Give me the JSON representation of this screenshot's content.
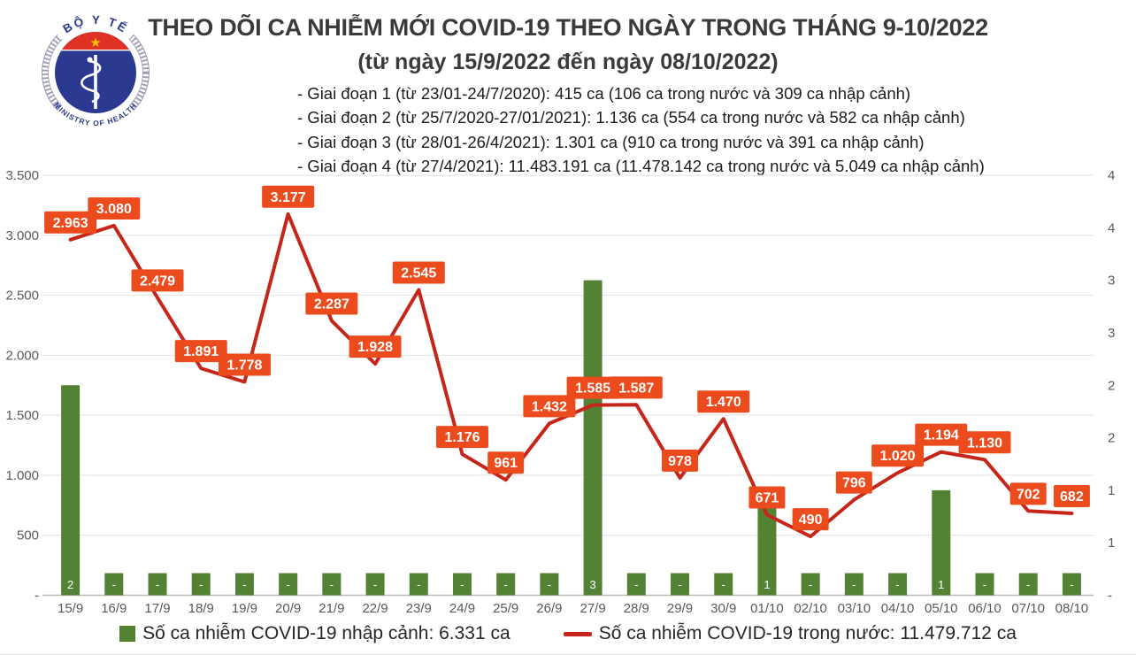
{
  "logo": {
    "top_text": "BỘ Y TẾ",
    "bottom_text": "MINISTRY OF HEALTH",
    "colors": {
      "ring": "#9a9ab2",
      "text": "#2b3990",
      "flag_red": "#e03127",
      "disk_blue": "#2b3990",
      "star_gold": "#f5c400"
    }
  },
  "header": {
    "title": "THEO DÕI CA NHIỄM MỚI COVID-19 THEO NGÀY TRONG THÁNG 9-10/2022",
    "subtitle": "(từ ngày 15/9/2022 đến ngày 08/10/2022)",
    "phases": [
      "- Giai đoạn 1 (từ 23/01-24/7/2020): 415 ca (106 ca trong nước và 309 ca nhập cảnh)",
      "- Giai đoạn 2 (từ 25/7/2020-27/01/2021): 1.136 ca (554 ca trong nước và 582 ca nhập cảnh)",
      "- Giai đoạn 3 (từ 28/01-26/4/2021): 1.301 ca (910 ca trong nước và 391 ca nhập cảnh)",
      "- Giai đoạn 4 (từ 27/4/2021): 11.483.191 ca (11.478.142 ca trong nước và 5.049 ca nhập cảnh)"
    ]
  },
  "chart_data": {
    "type": "bar",
    "subtype": "combo-bar-line-dual-axis",
    "categories": [
      "15/9",
      "16/9",
      "17/9",
      "18/9",
      "19/9",
      "20/9",
      "21/9",
      "22/9",
      "23/9",
      "24/9",
      "25/9",
      "26/9",
      "27/9",
      "28/9",
      "29/9",
      "30/9",
      "01/10",
      "02/10",
      "03/10",
      "04/10",
      "05/10",
      "06/10",
      "07/10",
      "08/10"
    ],
    "series": [
      {
        "name": "Số ca nhiễm COVID-19 nhập cảnh",
        "type": "bar",
        "axis": "right",
        "color": "#548235",
        "values": [
          2,
          0,
          0,
          0,
          0,
          0,
          0,
          0,
          0,
          0,
          0,
          0,
          3,
          0,
          0,
          0,
          1,
          0,
          0,
          0,
          1,
          0,
          0,
          0
        ],
        "labels": [
          "2",
          "-",
          "-",
          "-",
          "-",
          "-",
          "-",
          "-",
          "-",
          "-",
          "-",
          "-",
          "3",
          "-",
          "-",
          "-",
          "1",
          "-",
          "-",
          "-",
          "1",
          "-",
          "-",
          "-"
        ]
      },
      {
        "name": "Số ca nhiễm COVID-19 trong nước",
        "type": "line",
        "axis": "left",
        "color": "#c6251a",
        "callout_color": "#ec4b1d",
        "values": [
          2963,
          3080,
          2479,
          1891,
          1778,
          3177,
          2287,
          1928,
          2545,
          1176,
          961,
          1432,
          1585,
          1587,
          978,
          1470,
          671,
          490,
          796,
          1020,
          1194,
          1130,
          702,
          682
        ],
        "labels": [
          "2.963",
          "3.080",
          "2.479",
          "1.891",
          "1.778",
          "3.177",
          "2.287",
          "1.928",
          "2.545",
          "1.176",
          "961",
          "1.432",
          "1.585",
          "1.587",
          "978",
          "1.470",
          "671",
          "490",
          "796",
          "1.020",
          "1.194",
          "1.130",
          "702",
          "682"
        ]
      }
    ],
    "left_axis": {
      "min": 0,
      "max": 3500,
      "tick_labels": [
        "3.500",
        "3.000",
        "2.500",
        "2.000",
        "1.500",
        "1.000",
        "500",
        "-"
      ]
    },
    "right_axis": {
      "min": 0,
      "max": 4,
      "tick_labels": [
        "4",
        "4",
        "3",
        "3",
        "2",
        "2",
        "1",
        "1",
        "-"
      ]
    },
    "grid": "horizontal-only",
    "legend_position": "bottom-center",
    "legend": [
      {
        "label": "Số ca nhiễm COVID-19 nhập cảnh: 6.331 ca",
        "swatch": "square",
        "color": "#548235"
      },
      {
        "label": "Số ca nhiễm COVID-19 trong nước: 11.479.712 ca",
        "swatch": "line",
        "color": "#c6251a"
      }
    ]
  }
}
